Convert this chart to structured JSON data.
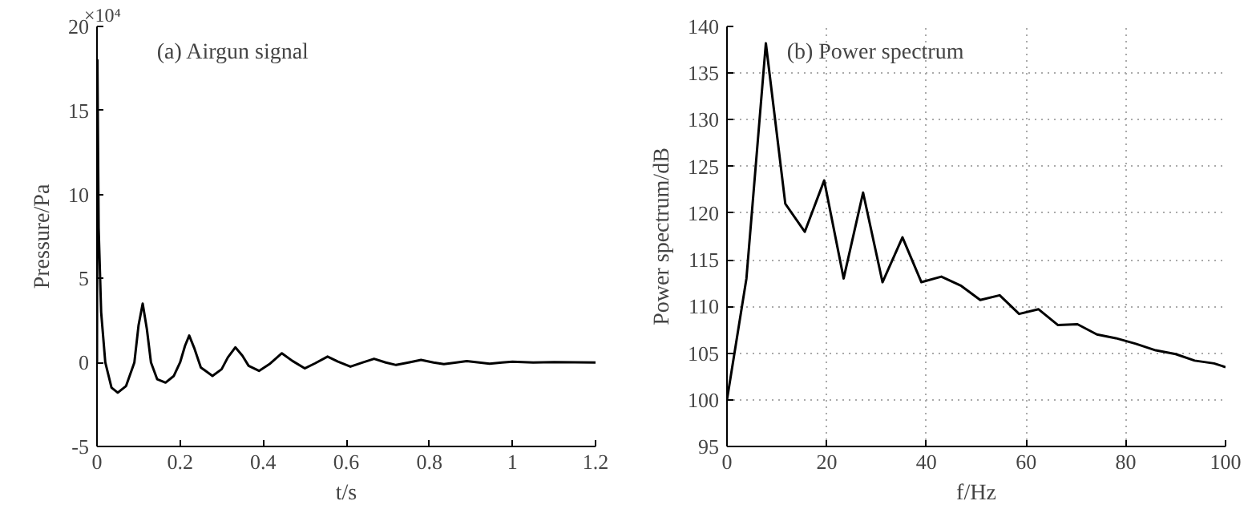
{
  "chart_data": [
    {
      "type": "line",
      "title": "(a) Airgun signal",
      "xlabel": "t/s",
      "ylabel": "Pressure/Pa",
      "annotations": [
        "×10⁴"
      ],
      "x": [
        0,
        0.001,
        0.004,
        0.01,
        0.02,
        0.035,
        0.05,
        0.07,
        0.09,
        0.1,
        0.11,
        0.12,
        0.13,
        0.145,
        0.165,
        0.185,
        0.2,
        0.212,
        0.222,
        0.235,
        0.25,
        0.278,
        0.3,
        0.315,
        0.333,
        0.35,
        0.365,
        0.39,
        0.415,
        0.445,
        0.47,
        0.5,
        0.525,
        0.555,
        0.58,
        0.61,
        0.64,
        0.667,
        0.695,
        0.72,
        0.75,
        0.78,
        0.81,
        0.835,
        0.865,
        0.89,
        0.92,
        0.945,
        0.975,
        1.0,
        1.05,
        1.1,
        1.2
      ],
      "series": [
        {
          "color": "#000000",
          "values": [
            0,
            18,
            8,
            3,
            0,
            -1.5,
            -1.8,
            -1.4,
            0,
            2.2,
            3.5,
            2,
            0,
            -1,
            -1.2,
            -0.8,
            0,
            1,
            1.6,
            0.8,
            -0.3,
            -0.8,
            -0.4,
            0.3,
            0.9,
            0.4,
            -0.2,
            -0.5,
            -0.1,
            0.55,
            0.1,
            -0.35,
            -0.05,
            0.35,
            0.05,
            -0.25,
            0,
            0.22,
            0,
            -0.15,
            0,
            0.15,
            0,
            -0.1,
            0,
            0.08,
            0,
            -0.07,
            0,
            0.05,
            0,
            0.02,
            0
          ]
        }
      ],
      "xlim": [
        0,
        1.2
      ],
      "xticks": [
        0,
        0.2,
        0.4,
        0.6,
        0.8,
        1,
        1.2
      ],
      "ylim": [
        -5,
        20
      ],
      "yticks": [
        -5,
        0,
        5,
        10,
        15,
        20
      ],
      "grid": false
    },
    {
      "type": "line",
      "title": "(b) Power spectrum",
      "xlabel": "f/Hz",
      "ylabel": "Power spectrum/dB",
      "x": [
        0,
        3.9,
        7.8,
        11.7,
        15.6,
        19.5,
        23.4,
        27.3,
        31.2,
        35.2,
        39,
        43,
        47,
        50.8,
        54.7,
        58.6,
        62.5,
        66.4,
        70.3,
        74.2,
        78,
        82,
        86,
        90,
        93.8,
        97.7,
        100
      ],
      "series": [
        {
          "color": "#000000",
          "values": [
            100,
            113,
            138.2,
            121,
            118,
            123.5,
            113,
            122.2,
            112.6,
            117.4,
            112.6,
            113.2,
            112.2,
            110.7,
            111.2,
            109.2,
            109.7,
            108,
            108.1,
            107,
            106.6,
            106,
            105.3,
            104.9,
            104.2,
            103.9,
            103.5
          ]
        }
      ],
      "xlim": [
        0,
        100
      ],
      "xticks": [
        0,
        20,
        40,
        60,
        80,
        100
      ],
      "ylim": [
        95,
        140
      ],
      "yticks": [
        95,
        100,
        105,
        110,
        115,
        120,
        125,
        130,
        135,
        140
      ],
      "grid": true
    }
  ]
}
